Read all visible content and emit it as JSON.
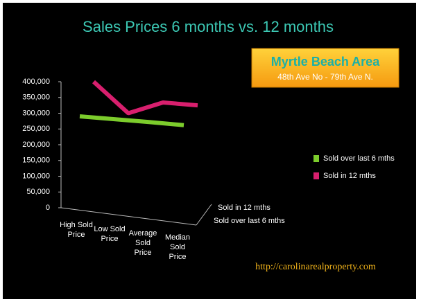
{
  "chart_data": {
    "type": "line",
    "title": "Sales Prices  6 months vs. 12 months",
    "box_title": "Myrtle Beach Area",
    "box_subtitle": "48th Ave No - 79th Ave N.",
    "footer": "http://carolinarealproperty.com",
    "categories": [
      "High Sold Price",
      "Low Sold Price",
      "Average Sold Price",
      "Median Sold Price"
    ],
    "series": [
      {
        "name": "Sold over last 6 mths",
        "color": "#7ccc2c",
        "values": [
          290000,
          281000,
          272000,
          262000
        ]
      },
      {
        "name": "Sold in 12 mths",
        "color": "#d81f6e",
        "values": [
          400000,
          300000,
          334000,
          325000
        ]
      }
    ],
    "ylim": [
      0,
      400000
    ],
    "yticks": [
      0,
      {
        "value": 50000,
        "label": "50,000"
      },
      {
        "value": 100000,
        "label": "100,000"
      },
      {
        "value": 150000,
        "label": "150,000"
      },
      {
        "value": 200000,
        "label": "200,000"
      },
      {
        "value": 250000,
        "label": "250,000"
      },
      {
        "value": 300000,
        "label": "300,000"
      },
      {
        "value": 350000,
        "label": "350,000"
      },
      {
        "value": 400000,
        "label": "400,000"
      }
    ],
    "grid": false,
    "legend": "right"
  }
}
